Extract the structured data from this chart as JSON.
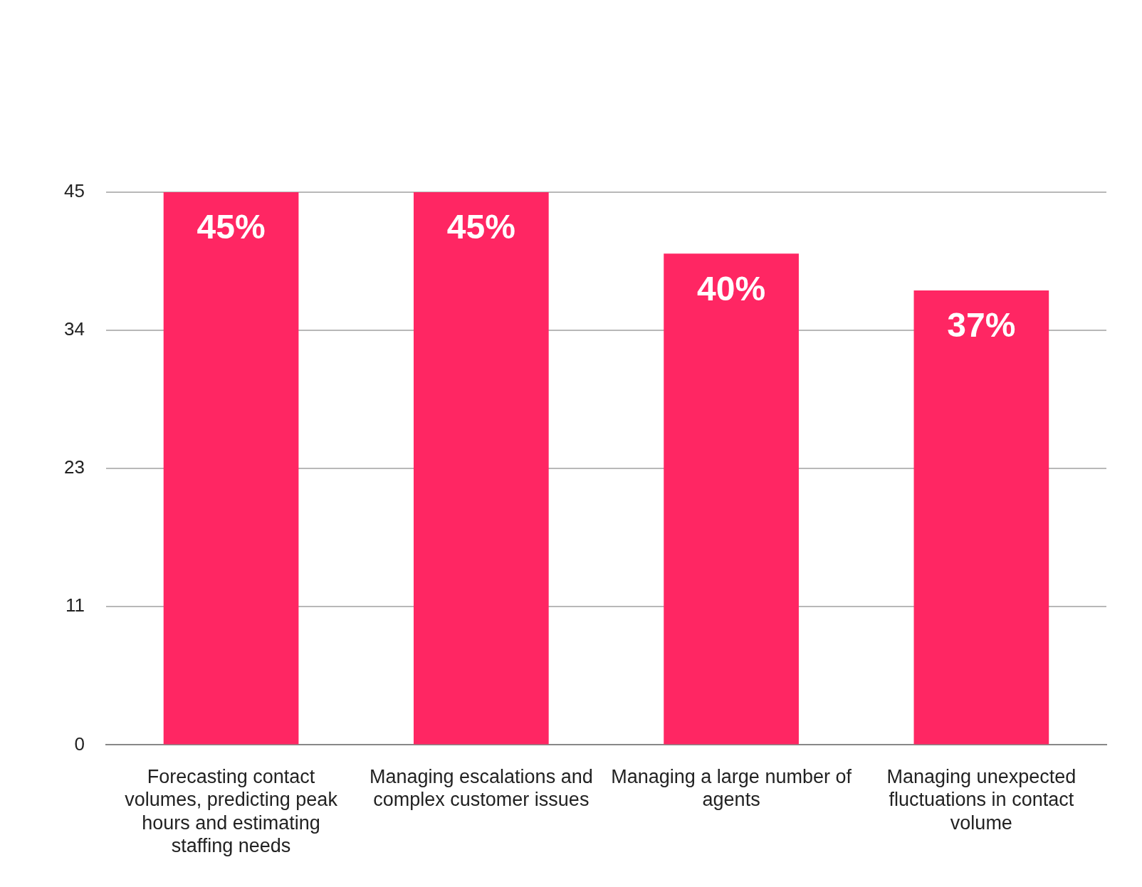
{
  "chart_data": {
    "type": "bar",
    "categories": [
      "Forecasting contact volumes, predicting peak hours and estimating staffing needs",
      "Managing escalations and complex customer issues",
      "Managing a large number of agents",
      "Managing unexpected fluctuations in contact volume"
    ],
    "values": [
      45,
      45,
      40,
      37
    ],
    "value_labels": [
      "45%",
      "45%",
      "40%",
      "37%"
    ],
    "color": "#ff2663",
    "ylim": [
      0,
      45
    ],
    "yticks": [
      0,
      {
        "value": 11.25,
        "label": "11"
      },
      {
        "value": 22.5,
        "label": "23"
      },
      {
        "value": 33.75,
        "label": "34"
      },
      45
    ],
    "grid": "y",
    "legend": false
  }
}
